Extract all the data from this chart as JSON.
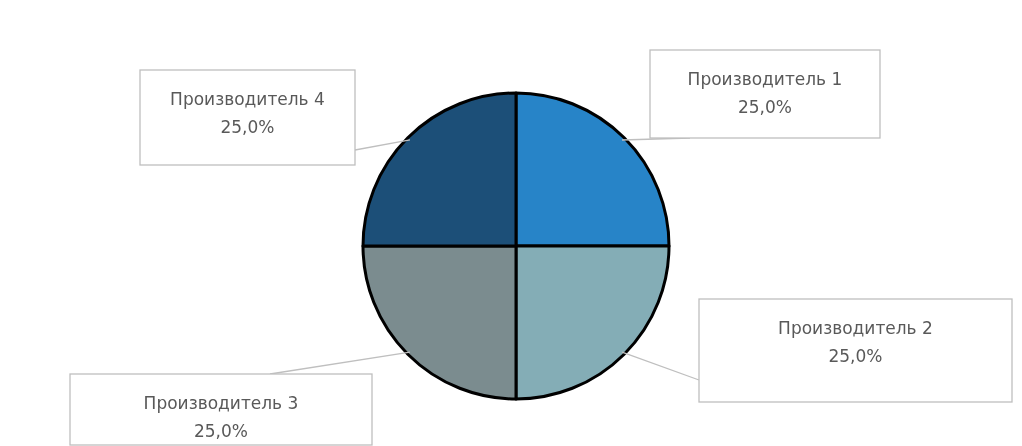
{
  "chart_data": {
    "type": "pie",
    "categories": [
      "Производитель 1",
      "Производитель 2",
      "Производитель 3",
      "Производитель 4"
    ],
    "values": [
      25,
      25,
      25,
      25
    ],
    "colors": [
      "#2784c8",
      "#84adb6",
      "#7b8c8f",
      "#1c4f78"
    ],
    "value_labels": [
      "25,0%",
      "25,0%",
      "25,0%",
      "25,0%"
    ],
    "legend": false
  }
}
